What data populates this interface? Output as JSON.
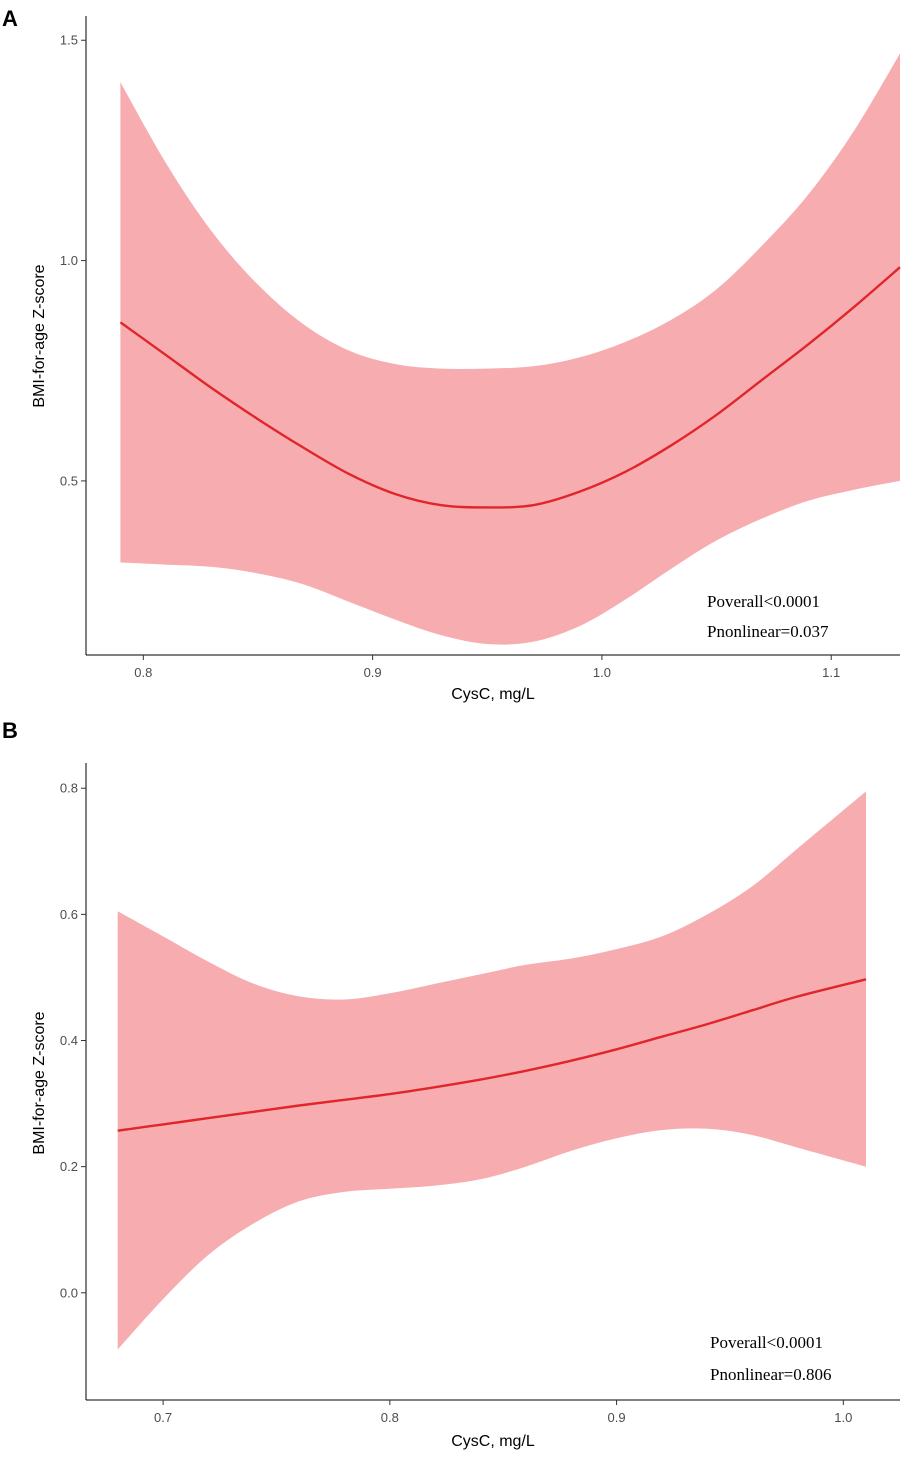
{
  "chart_data": [
    {
      "type": "line",
      "panel_label": "A",
      "title": "",
      "xlabel": "CysC, mg/L",
      "ylabel": "BMI-for-age Z-score",
      "xlim": [
        0.775,
        1.13
      ],
      "ylim": [
        0.105,
        1.555
      ],
      "xticks": [
        0.8,
        0.9,
        1.0,
        1.1
      ],
      "xtick_labels": [
        "0.8",
        "0.9",
        "1.0",
        "1.1"
      ],
      "yticks": [
        0.5,
        1.0,
        1.5
      ],
      "ytick_labels": [
        "0.5",
        "1.0",
        "1.5"
      ],
      "grid": false,
      "band_color": "#f7adb0",
      "line_color": "#e0262c",
      "x": [
        0.79,
        0.81,
        0.83,
        0.85,
        0.87,
        0.89,
        0.91,
        0.93,
        0.95,
        0.97,
        0.99,
        1.01,
        1.03,
        1.05,
        1.07,
        1.09,
        1.11,
        1.13
      ],
      "series": [
        {
          "name": "estimate",
          "values": [
            0.86,
            0.785,
            0.71,
            0.64,
            0.575,
            0.515,
            0.47,
            0.445,
            0.44,
            0.445,
            0.475,
            0.52,
            0.58,
            0.65,
            0.73,
            0.81,
            0.895,
            0.985
          ]
        },
        {
          "name": "upper",
          "values": [
            1.405,
            1.22,
            1.065,
            0.945,
            0.855,
            0.795,
            0.765,
            0.755,
            0.755,
            0.76,
            0.78,
            0.815,
            0.865,
            0.935,
            1.035,
            1.15,
            1.295,
            1.47
          ]
        },
        {
          "name": "lower",
          "values": [
            0.315,
            0.31,
            0.305,
            0.29,
            0.265,
            0.225,
            0.185,
            0.15,
            0.13,
            0.135,
            0.17,
            0.23,
            0.3,
            0.365,
            0.415,
            0.455,
            0.48,
            0.5
          ]
        }
      ],
      "annotations": [
        "Poverall<0.0001",
        "Pnonlinear=0.037"
      ]
    },
    {
      "type": "line",
      "panel_label": "B",
      "title": "",
      "xlabel": "CysC, mg/L",
      "ylabel": "BMI-for-age Z-score",
      "xlim": [
        0.666,
        1.025
      ],
      "ylim": [
        -0.17,
        0.84
      ],
      "xticks": [
        0.7,
        0.8,
        0.9,
        1.0
      ],
      "xtick_labels": [
        "0.7",
        "0.8",
        "0.9",
        "1.0"
      ],
      "yticks": [
        0.0,
        0.2,
        0.4,
        0.6,
        0.8
      ],
      "ytick_labels": [
        "0.0",
        "0.2",
        "0.4",
        "0.6",
        "0.8"
      ],
      "grid": false,
      "band_color": "#f7adb0",
      "line_color": "#e0262c",
      "x": [
        0.68,
        0.7,
        0.72,
        0.74,
        0.76,
        0.78,
        0.8,
        0.82,
        0.84,
        0.86,
        0.88,
        0.9,
        0.92,
        0.94,
        0.96,
        0.98,
        1.01
      ],
      "series": [
        {
          "name": "estimate",
          "values": [
            0.257,
            0.267,
            0.277,
            0.287,
            0.297,
            0.306,
            0.315,
            0.326,
            0.338,
            0.352,
            0.368,
            0.386,
            0.406,
            0.426,
            0.448,
            0.47,
            0.497
          ]
        },
        {
          "name": "upper",
          "values": [
            0.605,
            0.565,
            0.525,
            0.49,
            0.47,
            0.465,
            0.475,
            0.49,
            0.505,
            0.52,
            0.53,
            0.545,
            0.565,
            0.6,
            0.645,
            0.705,
            0.795
          ]
        },
        {
          "name": "lower",
          "values": [
            -0.09,
            -0.01,
            0.06,
            0.11,
            0.145,
            0.16,
            0.165,
            0.17,
            0.18,
            0.2,
            0.225,
            0.245,
            0.258,
            0.26,
            0.25,
            0.23,
            0.2
          ]
        }
      ],
      "annotations": [
        "Poverall<0.0001",
        "Pnonlinear=0.806"
      ]
    }
  ]
}
